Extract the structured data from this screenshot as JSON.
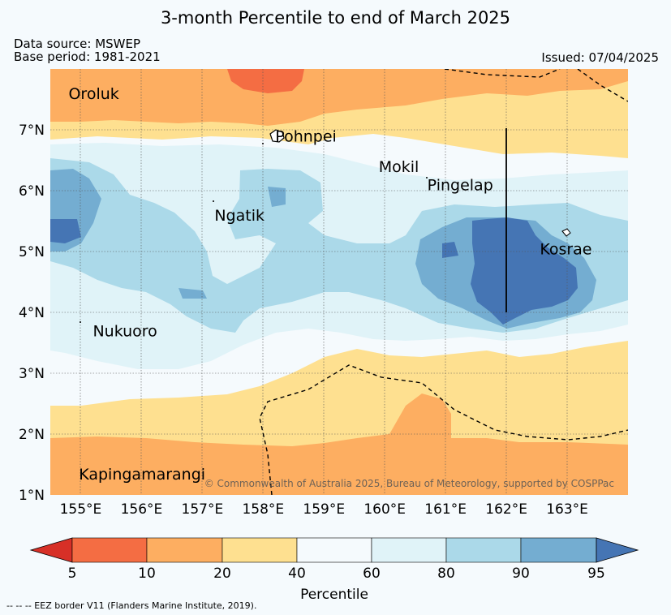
{
  "title": "3-month Percentile to end of March 2025",
  "data_source": "Data source: MSWEP",
  "base_period": "Base period: 1981-2021",
  "issued": "Issued: 07/04/2025",
  "copyright": "© Commonwealth of Australia 2025, Bureau of Meteorology, supported by COSPPac",
  "footnote": "-- -- -- EEZ border V11 (Flanders Marine Institute, 2019).",
  "map": {
    "lon_range": [
      154.5,
      164.0
    ],
    "lat_range": [
      1.0,
      8.0
    ],
    "lon_ticks": [
      155,
      156,
      157,
      158,
      159,
      160,
      161,
      162,
      163
    ],
    "lon_labels": [
      "155°E",
      "156°E",
      "157°E",
      "158°E",
      "159°E",
      "160°E",
      "161°E",
      "162°E",
      "163°E"
    ],
    "lat_ticks": [
      1,
      2,
      3,
      4,
      5,
      6,
      7
    ],
    "lat_labels": [
      "1°N",
      "2°N",
      "3°N",
      "4°N",
      "5°N",
      "6°N",
      "7°N"
    ],
    "places": [
      {
        "name": "Oroluk",
        "lon": 154.8,
        "lat": 7.6
      },
      {
        "name": "Pohnpei",
        "lon": 158.2,
        "lat": 6.9
      },
      {
        "name": "Mokil",
        "lon": 159.9,
        "lat": 6.4
      },
      {
        "name": "Pingelap",
        "lon": 160.7,
        "lat": 6.1
      },
      {
        "name": "Ngatik",
        "lon": 157.2,
        "lat": 5.6
      },
      {
        "name": "Kosrae",
        "lon": 162.55,
        "lat": 5.05
      },
      {
        "name": "Nukuoro",
        "lon": 155.2,
        "lat": 3.7
      },
      {
        "name": "Kapingamarangi",
        "lon": 154.97,
        "lat": 1.35
      }
    ]
  },
  "colorbar": {
    "label": "Percentile",
    "ticks": [
      "5",
      "10",
      "20",
      "40",
      "60",
      "80",
      "90",
      "95"
    ],
    "colors": {
      "below5": "#d73027",
      "p5_10": "#f46d43",
      "p10_20": "#fdae61",
      "p20_40": "#fee090",
      "p40_60": "#f5fafd",
      "p60_80": "#e0f3f8",
      "p80_90": "#abd9e9",
      "p90_95": "#74add1",
      "above95": "#4575b4"
    }
  }
}
